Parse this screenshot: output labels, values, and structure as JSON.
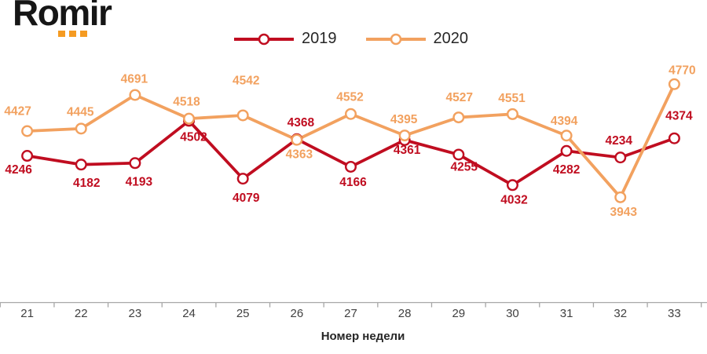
{
  "logo": {
    "text": "Romir",
    "dot_color": "#F59B22"
  },
  "chart_data": {
    "type": "line",
    "categories": [
      "21",
      "22",
      "23",
      "24",
      "25",
      "26",
      "27",
      "28",
      "29",
      "30",
      "31",
      "32",
      "33"
    ],
    "xlabel": "Номер недели",
    "legend_position": "top-center",
    "grid": false,
    "marker": "open-circle",
    "background": "#ffffff",
    "axis": {
      "line_color": "#A6A6A6",
      "tick_label_color": "#404040",
      "title_color": "#262626"
    },
    "series": [
      {
        "name": "2019",
        "color": "#C00D20",
        "values": [
          4246,
          4182,
          4193,
          4502,
          4079,
          4368,
          4166,
          4361,
          4255,
          4032,
          4282,
          4234,
          4374
        ],
        "label_offsets": [
          [
            -11,
            18
          ],
          [
            7,
            24
          ],
          [
            5,
            24
          ],
          [
            6,
            21
          ],
          [
            4,
            25
          ],
          [
            5,
            -21
          ],
          [
            3,
            20
          ],
          [
            3,
            13
          ],
          [
            7,
            16
          ],
          [
            2,
            19
          ],
          [
            0,
            24
          ],
          [
            -2,
            -21
          ],
          [
            6,
            -28
          ]
        ]
      },
      {
        "name": "2020",
        "color": "#F2A15F",
        "values": [
          4427,
          4445,
          4691,
          4518,
          4542,
          4363,
          4552,
          4395,
          4527,
          4551,
          4394,
          3943,
          4770
        ],
        "label_offsets": [
          [
            -12,
            -25
          ],
          [
            -1,
            -21
          ],
          [
            -1,
            -20
          ],
          [
            -3,
            -21
          ],
          [
            4,
            -44
          ],
          [
            3,
            19
          ],
          [
            -1,
            -21
          ],
          [
            -1,
            -20
          ],
          [
            1,
            -25
          ],
          [
            -1,
            -20
          ],
          [
            -3,
            -18
          ],
          [
            4,
            19
          ],
          [
            10,
            -17
          ]
        ]
      }
    ]
  }
}
